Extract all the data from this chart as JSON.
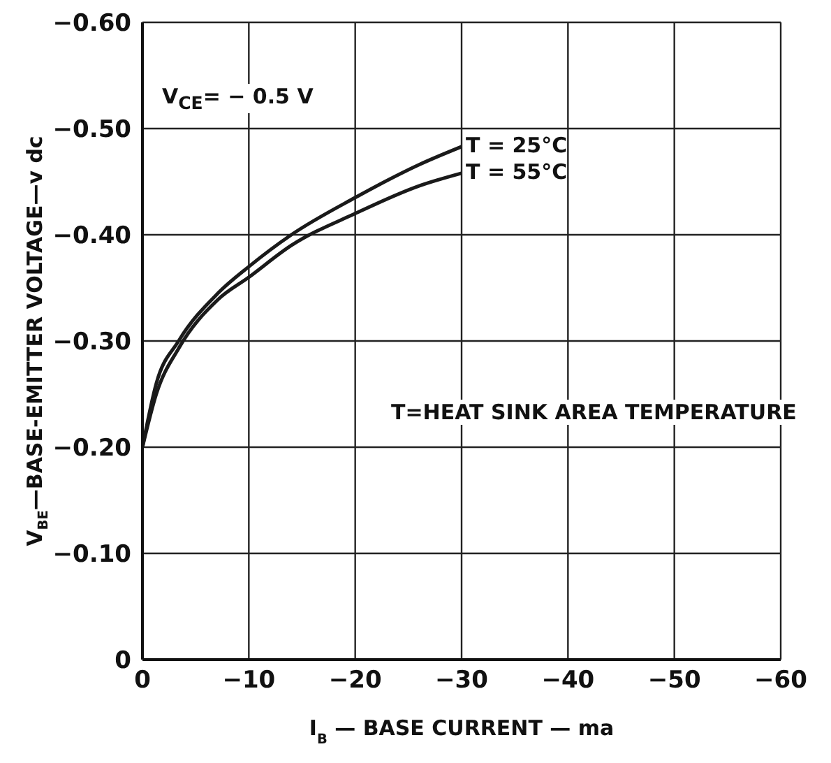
{
  "chart_data": {
    "type": "line",
    "xlabel": "I$_{B}$ — BASE CURRENT — ma",
    "ylabel": "V$_{BE}$—BASE-EMITTER VOLTAGE—v dc",
    "annotations": [
      "V$_{CE}$= − 0.5 V",
      "T=HEAT SINK AREA TEMPERATURE"
    ],
    "x": [
      0,
      -1.3,
      -3.4,
      -7.1,
      -10,
      -14,
      -20,
      -26,
      -30
    ],
    "series": [
      {
        "name": "T = 25°C",
        "color": "#1a1a1a",
        "values": [
          -0.2,
          -0.26,
          -0.3,
          -0.345,
          -0.37,
          -0.4,
          -0.435,
          -0.466,
          -0.483
        ]
      },
      {
        "name": "T = 55°C",
        "color": "#1a1a1a",
        "values": [
          -0.2,
          -0.25,
          -0.293,
          -0.339,
          -0.36,
          -0.39,
          -0.42,
          -0.446,
          -0.458
        ]
      }
    ],
    "xlim": [
      0,
      -60
    ],
    "ylim": [
      0,
      -0.6
    ],
    "xticks": [
      0,
      {
        "value": -10,
        "label": "−10"
      },
      {
        "value": -20,
        "label": "−20"
      },
      {
        "value": -30,
        "label": "−30"
      },
      {
        "value": -40,
        "label": "−40"
      },
      {
        "value": -50,
        "label": "−50"
      },
      {
        "value": -60,
        "label": "−60"
      }
    ],
    "yticks": [
      0,
      {
        "value": -0.1,
        "label": "−0.10"
      },
      {
        "value": -0.2,
        "label": "−0.20"
      },
      {
        "value": -0.3,
        "label": "−0.30"
      },
      {
        "value": -0.4,
        "label": "−0.40"
      },
      {
        "value": -0.5,
        "label": "−0.50"
      },
      {
        "value": -0.6,
        "label": "−0.60"
      }
    ],
    "grid": true,
    "legend": false,
    "marker": "none",
    "line_style": "solid"
  }
}
